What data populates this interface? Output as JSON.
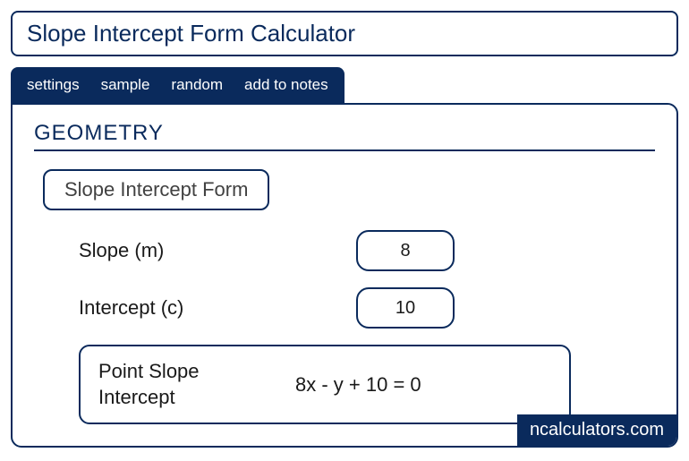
{
  "colors": {
    "primary": "#0a2a5c",
    "text": "#1a1a1a",
    "white": "#ffffff"
  },
  "title": "Slope Intercept Form Calculator",
  "tabs": {
    "settings": "settings",
    "sample": "sample",
    "random": "random",
    "add_to_notes": "add to notes"
  },
  "section_heading": "GEOMETRY",
  "subtitle": "Slope Intercept Form",
  "fields": {
    "slope": {
      "label": "Slope (m)",
      "value": "8"
    },
    "intercept": {
      "label": "Intercept (c)",
      "value": "10"
    }
  },
  "result": {
    "label": "Point Slope Intercept",
    "value": "8x - y + 10 = 0"
  },
  "watermark": "ncalculators.com"
}
